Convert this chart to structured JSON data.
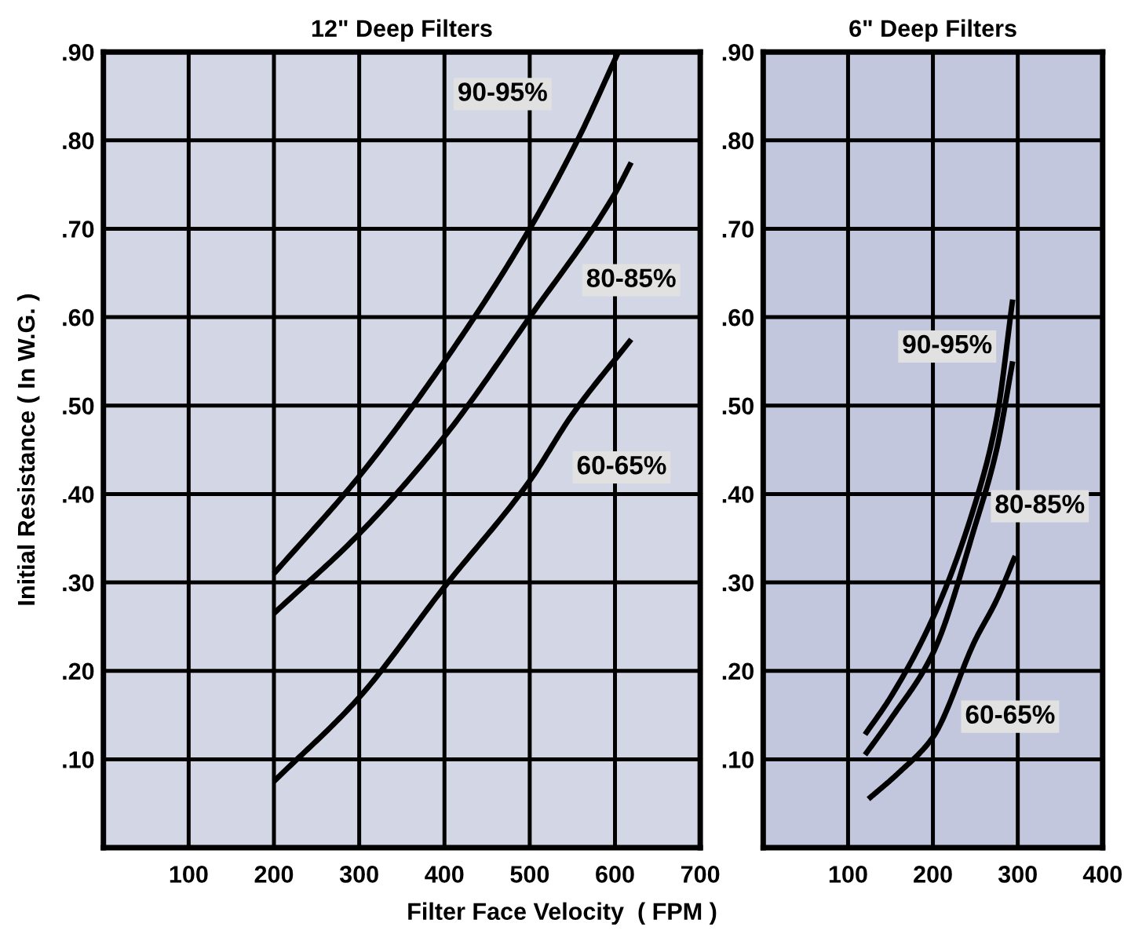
{
  "chart_data": [
    {
      "type": "line",
      "title": "12\" Deep Filters",
      "xlabel": "Filter Face Velocity  ( FPM )",
      "ylabel": "Initial Resistance ( In W.G. )",
      "xlim": [
        0,
        700
      ],
      "xticks": [
        100,
        200,
        300,
        400,
        500,
        600,
        700
      ],
      "ylim": [
        0,
        0.9
      ],
      "yticks": [
        {
          "value": 0.1,
          "label": ".10"
        },
        {
          "value": 0.2,
          "label": ".20"
        },
        {
          "value": 0.3,
          "label": ".30"
        },
        {
          "value": 0.4,
          "label": ".40"
        },
        {
          "value": 0.5,
          "label": ".50"
        },
        {
          "value": 0.6,
          "label": ".60"
        },
        {
          "value": 0.7,
          "label": ".70"
        },
        {
          "value": 0.8,
          "label": ".80"
        },
        {
          "value": 0.9,
          "label": ".90"
        }
      ],
      "grid": true,
      "legend": false,
      "series": [
        {
          "name": "90-95%",
          "color": "#000000",
          "x": [
            200,
            300,
            400,
            500,
            556,
            604
          ],
          "values": [
            0.31,
            0.42,
            0.55,
            0.7,
            0.8,
            0.9
          ]
        },
        {
          "name": "80-85%",
          "color": "#000000",
          "x": [
            200,
            300,
            400,
            500,
            600,
            619
          ],
          "values": [
            0.265,
            0.355,
            0.465,
            0.6,
            0.74,
            0.775
          ]
        },
        {
          "name": "60-65%",
          "color": "#000000",
          "x": [
            200,
            300,
            400,
            500,
            550,
            619
          ],
          "values": [
            0.075,
            0.17,
            0.295,
            0.415,
            0.49,
            0.575
          ]
        }
      ]
    },
    {
      "type": "line",
      "title": "6\" Deep Filters",
      "xlim": [
        0,
        400
      ],
      "xticks": [
        100,
        200,
        300,
        400
      ],
      "ylim": [
        0,
        0.9
      ],
      "yticks": [
        {
          "value": 0.1,
          "label": ".10"
        },
        {
          "value": 0.2,
          "label": ".20"
        },
        {
          "value": 0.3,
          "label": ".30"
        },
        {
          "value": 0.4,
          "label": ".40"
        },
        {
          "value": 0.5,
          "label": ".50"
        },
        {
          "value": 0.6,
          "label": ".60"
        },
        {
          "value": 0.7,
          "label": ".70"
        },
        {
          "value": 0.8,
          "label": ".80"
        },
        {
          "value": 0.9,
          "label": ".90"
        }
      ],
      "grid": true,
      "legend": false,
      "series": [
        {
          "name": "90-95%",
          "color": "#000000",
          "x": [
            120,
            150,
            200,
            250,
            275,
            294
          ],
          "values": [
            0.128,
            0.17,
            0.26,
            0.39,
            0.485,
            0.62
          ]
        },
        {
          "name": "80-85%",
          "color": "#000000",
          "x": [
            120,
            150,
            200,
            250,
            275,
            294
          ],
          "values": [
            0.105,
            0.145,
            0.22,
            0.365,
            0.45,
            0.55
          ]
        },
        {
          "name": "60-65%",
          "color": "#000000",
          "x": [
            124,
            160,
            200,
            250,
            275,
            297
          ],
          "values": [
            0.055,
            0.085,
            0.125,
            0.235,
            0.28,
            0.33
          ]
        }
      ]
    }
  ]
}
